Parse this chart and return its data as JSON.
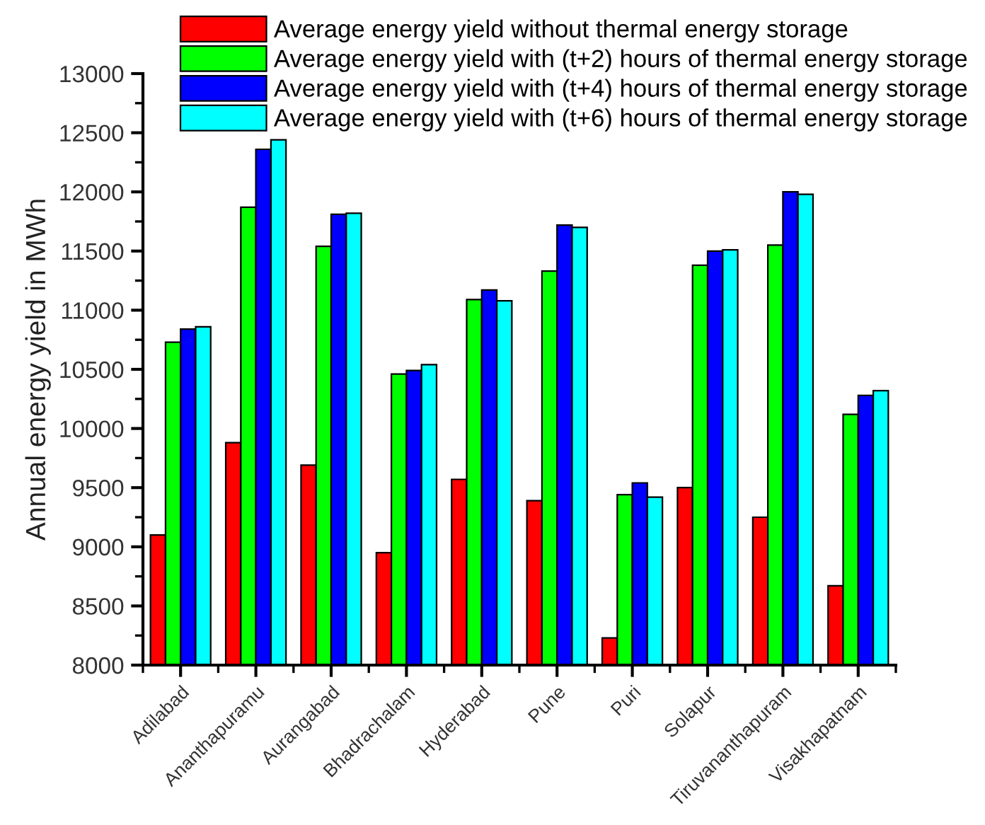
{
  "chart_data": {
    "type": "bar",
    "ylabel": "Annual energy yield in MWh",
    "categories": [
      "Adilabad",
      "Ananthapuramu",
      "Aurangabad",
      "Bhadrachalam",
      "Hyderabad",
      "Pune",
      "Puri",
      "Solapur",
      "Tiruvananthapuram",
      "Visakhapatnam"
    ],
    "series": [
      {
        "name": "Average energy yield without thermal energy storage",
        "color": "#ff0000",
        "values": [
          9100,
          9880,
          9690,
          8950,
          9570,
          9390,
          8230,
          9500,
          9250,
          8670
        ]
      },
      {
        "name": "Average energy yield with (t+2) hours of thermal energy storage",
        "color": "#00ff00",
        "values": [
          10730,
          11870,
          11540,
          10460,
          11090,
          11330,
          9440,
          11380,
          11550,
          10120
        ]
      },
      {
        "name": "Average energy yield with (t+4) hours of thermal energy storage",
        "color": "#0000ff",
        "values": [
          10840,
          12360,
          11810,
          10490,
          11170,
          11720,
          9540,
          11500,
          12000,
          10280
        ]
      },
      {
        "name": "Average energy yield with (t+6) hours of thermal energy storage",
        "color": "#00ffff",
        "values": [
          10860,
          12440,
          11820,
          10540,
          11080,
          11700,
          9420,
          11510,
          11980,
          10320
        ]
      }
    ],
    "ylim": [
      8000,
      13000
    ],
    "yticks": [
      8000,
      8500,
      9000,
      9500,
      10000,
      10500,
      11000,
      11500,
      12000,
      12500,
      13000
    ],
    "grid": false,
    "legend": "top right"
  }
}
